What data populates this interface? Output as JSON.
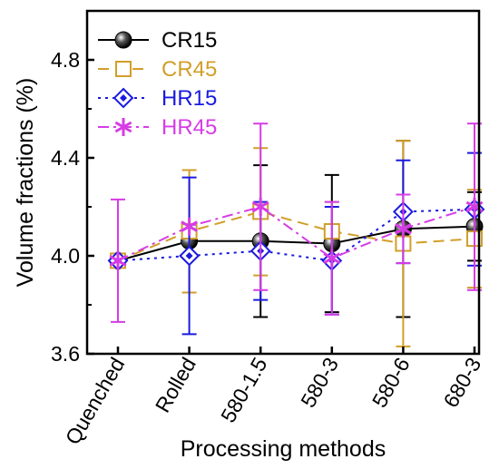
{
  "chart_data": {
    "type": "line",
    "title": "",
    "xlabel": "Processing methods",
    "ylabel": "Volume fractions (%)",
    "categories": [
      "Quenched",
      "Rolled",
      "580-1.5",
      "580-3",
      "580-6",
      "680-3"
    ],
    "ylim": [
      3.6,
      5.0
    ],
    "yticks": [
      3.6,
      4.0,
      4.4,
      4.8
    ],
    "grid": false,
    "legend_position": "top-left",
    "series": [
      {
        "name": "CR15",
        "color": "#000000",
        "dash": "solid",
        "marker": "sphere",
        "values": [
          3.98,
          4.06,
          4.06,
          4.05,
          4.11,
          4.12
        ],
        "errors": [
          0.0,
          0.0,
          0.31,
          0.28,
          0.36,
          0.14
        ]
      },
      {
        "name": "CR45",
        "color": "#d19f2a",
        "dash": "dashed",
        "marker": "open-square",
        "values": [
          3.98,
          4.1,
          4.18,
          4.1,
          4.05,
          4.07
        ],
        "errors": [
          0.0,
          0.25,
          0.26,
          0.12,
          0.42,
          0.2
        ]
      },
      {
        "name": "HR15",
        "color": "#1a1adf",
        "dash": "dotted",
        "marker": "open-diamond",
        "values": [
          3.98,
          4.0,
          4.02,
          3.98,
          4.18,
          4.19
        ],
        "errors": [
          0.0,
          0.32,
          0.2,
          0.22,
          0.21,
          0.23
        ]
      },
      {
        "name": "HR45",
        "color": "#d63ce6",
        "dash": "dashdot",
        "marker": "asterisk",
        "values": [
          3.98,
          4.12,
          4.2,
          3.99,
          4.11,
          4.2
        ],
        "errors": [
          0.25,
          0.0,
          0.34,
          0.23,
          0.14,
          0.34
        ]
      }
    ]
  }
}
